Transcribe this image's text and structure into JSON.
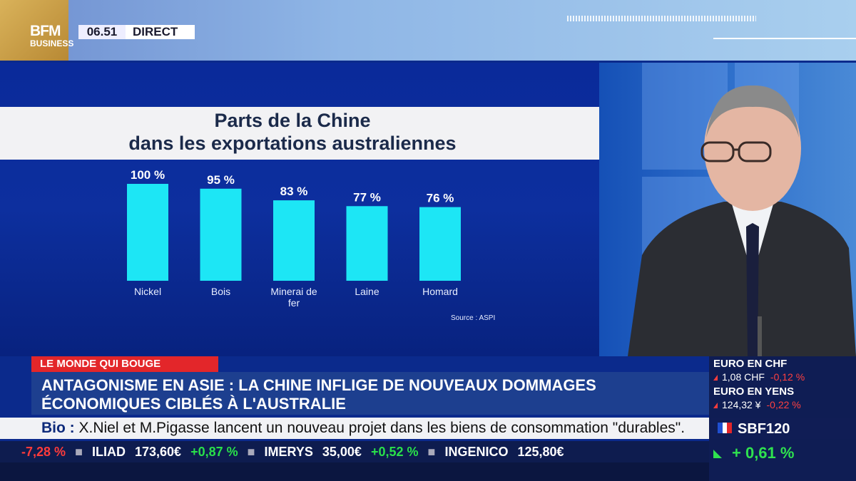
{
  "header": {
    "logo_top": "BFM",
    "logo_bottom": "BUSINESS",
    "time": "06.51",
    "live": "DIRECT"
  },
  "chart_title_line1": "Parts de la Chine",
  "chart_title_line2": "dans les exportations australiennes",
  "source": "Source : ASPI",
  "chart_data": {
    "type": "bar",
    "title": "Parts de la Chine dans les exportations australiennes",
    "categories": [
      "Nickel",
      "Bois",
      "Minerai de fer",
      "Laine",
      "Homard"
    ],
    "category_lines": [
      [
        "Nickel"
      ],
      [
        "Bois"
      ],
      [
        "Minerai de",
        "fer"
      ],
      [
        "Laine"
      ],
      [
        "Homard"
      ]
    ],
    "values": [
      100,
      95,
      83,
      77,
      76
    ],
    "value_labels": [
      "100 %",
      "95 %",
      "83 %",
      "77 %",
      "76 %"
    ],
    "ylim": [
      0,
      100
    ],
    "unit": "%",
    "bar_color": "#1de6f5",
    "grid": false
  },
  "lower_third": {
    "tag": "LE MONDE QUI BOUGE",
    "headline_line1": "ANTAGONISME EN ASIE : LA CHINE INFLIGE DE NOUVEAUX DOMMAGES",
    "headline_line2": "ÉCONOMIQUES CIBLÉS À L'AUSTRALIE",
    "bio_label": "Bio :",
    "bio_text": "X.Niel et M.Pigasse lancent un nouveau projet dans les biens de consommation \"durables\"."
  },
  "ticker": [
    {
      "text": "-7,28 %",
      "style": "neg"
    },
    {
      "text": "ILIAD",
      "style": "name"
    },
    {
      "text": "173,60€",
      "style": "name"
    },
    {
      "text": "+0,87 %",
      "style": "pos"
    },
    {
      "text": "IMERYS",
      "style": "name"
    },
    {
      "text": "35,00€",
      "style": "name"
    },
    {
      "text": "+0,52 %",
      "style": "pos"
    },
    {
      "text": "INGENICO",
      "style": "name"
    },
    {
      "text": "125,80€",
      "style": "name"
    }
  ],
  "markets": {
    "eur_chf_label": "EURO EN CHF",
    "eur_chf_value": "1,08 CHF",
    "eur_chf_change": "-0,12 %",
    "eur_jpy_label": "EURO EN YENS",
    "eur_jpy_value": "124,32 ¥",
    "eur_jpy_change": "-0,22 %",
    "index_name": "SBF120",
    "index_change": "+ 0,61 %"
  },
  "colors": {
    "accent_red": "#e3262a",
    "bar": "#1de6f5",
    "positive": "#2fe24f",
    "negative": "#ff3b3b"
  }
}
